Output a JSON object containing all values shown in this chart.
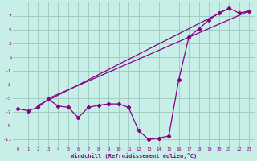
{
  "xlabel": "Windchill (Refroidissement éolien,°C)",
  "bg_color": "#c8eee8",
  "grid_color": "#a0ccc4",
  "line_color": "#880088",
  "xlim": [
    -0.5,
    23.5
  ],
  "ylim": [
    -12,
    9
  ],
  "xticks": [
    0,
    1,
    2,
    3,
    4,
    5,
    6,
    7,
    8,
    9,
    10,
    11,
    12,
    13,
    14,
    15,
    16,
    17,
    18,
    19,
    20,
    21,
    22,
    23
  ],
  "yticks": [
    -11,
    -9,
    -7,
    -5,
    -3,
    -1,
    1,
    3,
    5,
    7
  ],
  "jagged_x": [
    0,
    1,
    2,
    3,
    4,
    5,
    6,
    7,
    8,
    9,
    10,
    11,
    12,
    13,
    14,
    15,
    16,
    17,
    18,
    19,
    20,
    21,
    22,
    23
  ],
  "jagged_y": [
    -6.5,
    -6.8,
    -6.3,
    -5.1,
    -6.1,
    -6.3,
    -7.8,
    -6.3,
    -6.0,
    -5.8,
    -5.8,
    -6.3,
    -9.7,
    -11.0,
    -10.8,
    -10.5,
    -2.2,
    4.0,
    5.2,
    6.5,
    7.5,
    8.2,
    7.5,
    7.8
  ],
  "line2_x": [
    2.0,
    21.0
  ],
  "line2_y": [
    -6.0,
    8.2
  ],
  "line3_x": [
    3.0,
    23.0
  ],
  "line3_y": [
    -5.0,
    7.8
  ]
}
